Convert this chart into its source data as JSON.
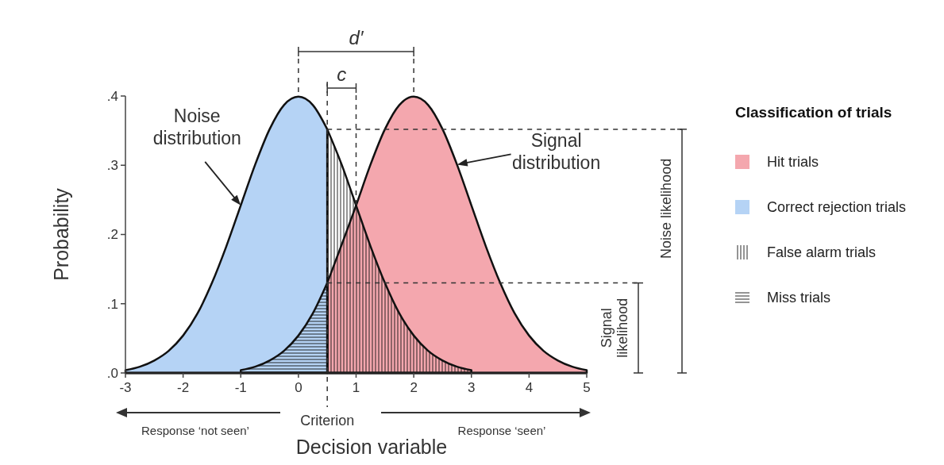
{
  "chart_data": {
    "type": "area",
    "xlabel": "Decision variable",
    "ylabel": "Probability",
    "legend_title": "Classification of trials",
    "legend": "right",
    "grid": false,
    "xlim": [
      -3,
      5
    ],
    "xticks": [
      -3,
      -2,
      -1,
      0,
      1,
      2,
      3,
      4,
      5
    ],
    "ylim": [
      0,
      0.4
    ],
    "yticks": [
      {
        "value": 0,
        "label": ".0"
      },
      {
        "value": 0.1,
        "label": ".1"
      },
      {
        "value": 0.2,
        "label": ".2"
      },
      {
        "value": 0.3,
        "label": ".3"
      },
      {
        "value": 0.4,
        "label": ".4"
      }
    ],
    "series": [
      {
        "name": "Hit trials",
        "color": "#f4a7ae",
        "x": [
          0.5,
          1,
          1.25,
          1.5,
          1.75,
          2,
          2.25,
          2.5,
          2.75,
          3,
          3.25,
          3.5,
          3.75,
          4,
          4.25,
          4.5,
          4.75,
          5
        ],
        "values": [
          0.13,
          0.242,
          0.301,
          0.352,
          0.387,
          0.399,
          0.387,
          0.352,
          0.301,
          0.242,
          0.183,
          0.13,
          0.086,
          0.054,
          0.032,
          0.018,
          0.009,
          0.004
        ]
      },
      {
        "name": "Correct rejection trials",
        "color": "#b5d3f5",
        "x": [
          -3,
          -2.75,
          -2.5,
          -2.25,
          -2,
          -1.75,
          -1.5,
          -1.25,
          -1,
          -0.75,
          -0.5,
          -0.25,
          0,
          0.25,
          0.5
        ],
        "values": [
          0.004,
          0.009,
          0.018,
          0.032,
          0.054,
          0.086,
          0.13,
          0.183,
          0.242,
          0.301,
          0.352,
          0.387,
          0.399,
          0.387,
          0.352
        ]
      },
      {
        "name": "False alarm trials",
        "color": "#111111",
        "x": [
          0.5,
          0.75,
          1,
          1.25,
          1.5,
          1.75,
          2,
          2.25,
          2.5,
          2.75,
          3
        ],
        "values": [
          0.352,
          0.301,
          0.242,
          0.183,
          0.13,
          0.086,
          0.054,
          0.032,
          0.018,
          0.009,
          0.004
        ]
      },
      {
        "name": "Miss trials",
        "color": "#111111",
        "x": [
          -1,
          -0.75,
          -0.5,
          -0.25,
          0,
          0.25,
          0.5
        ],
        "values": [
          0.004,
          0.009,
          0.018,
          0.032,
          0.054,
          0.086,
          0.13
        ]
      }
    ],
    "ref_lines": [
      {
        "axis": "x",
        "value": 0.5,
        "label": "Criterion",
        "line_style": "dashed"
      },
      {
        "axis": "y",
        "value": 0.352,
        "label": "Noise likelihood",
        "line_style": "dashed"
      },
      {
        "axis": "y",
        "value": 0.13,
        "label": "Signal likelihood",
        "line_style": "dashed"
      }
    ],
    "annotations": [
      {
        "text": "Noise distribution",
        "x": -1,
        "y": 0.242
      },
      {
        "text": "Signal distribution",
        "x": 2.75,
        "y": 0.301
      },
      "d′",
      {
        "text": "c",
        "x": 1,
        "y": 0.242
      },
      "Response ‘not seen’",
      "Response ‘seen’"
    ]
  }
}
